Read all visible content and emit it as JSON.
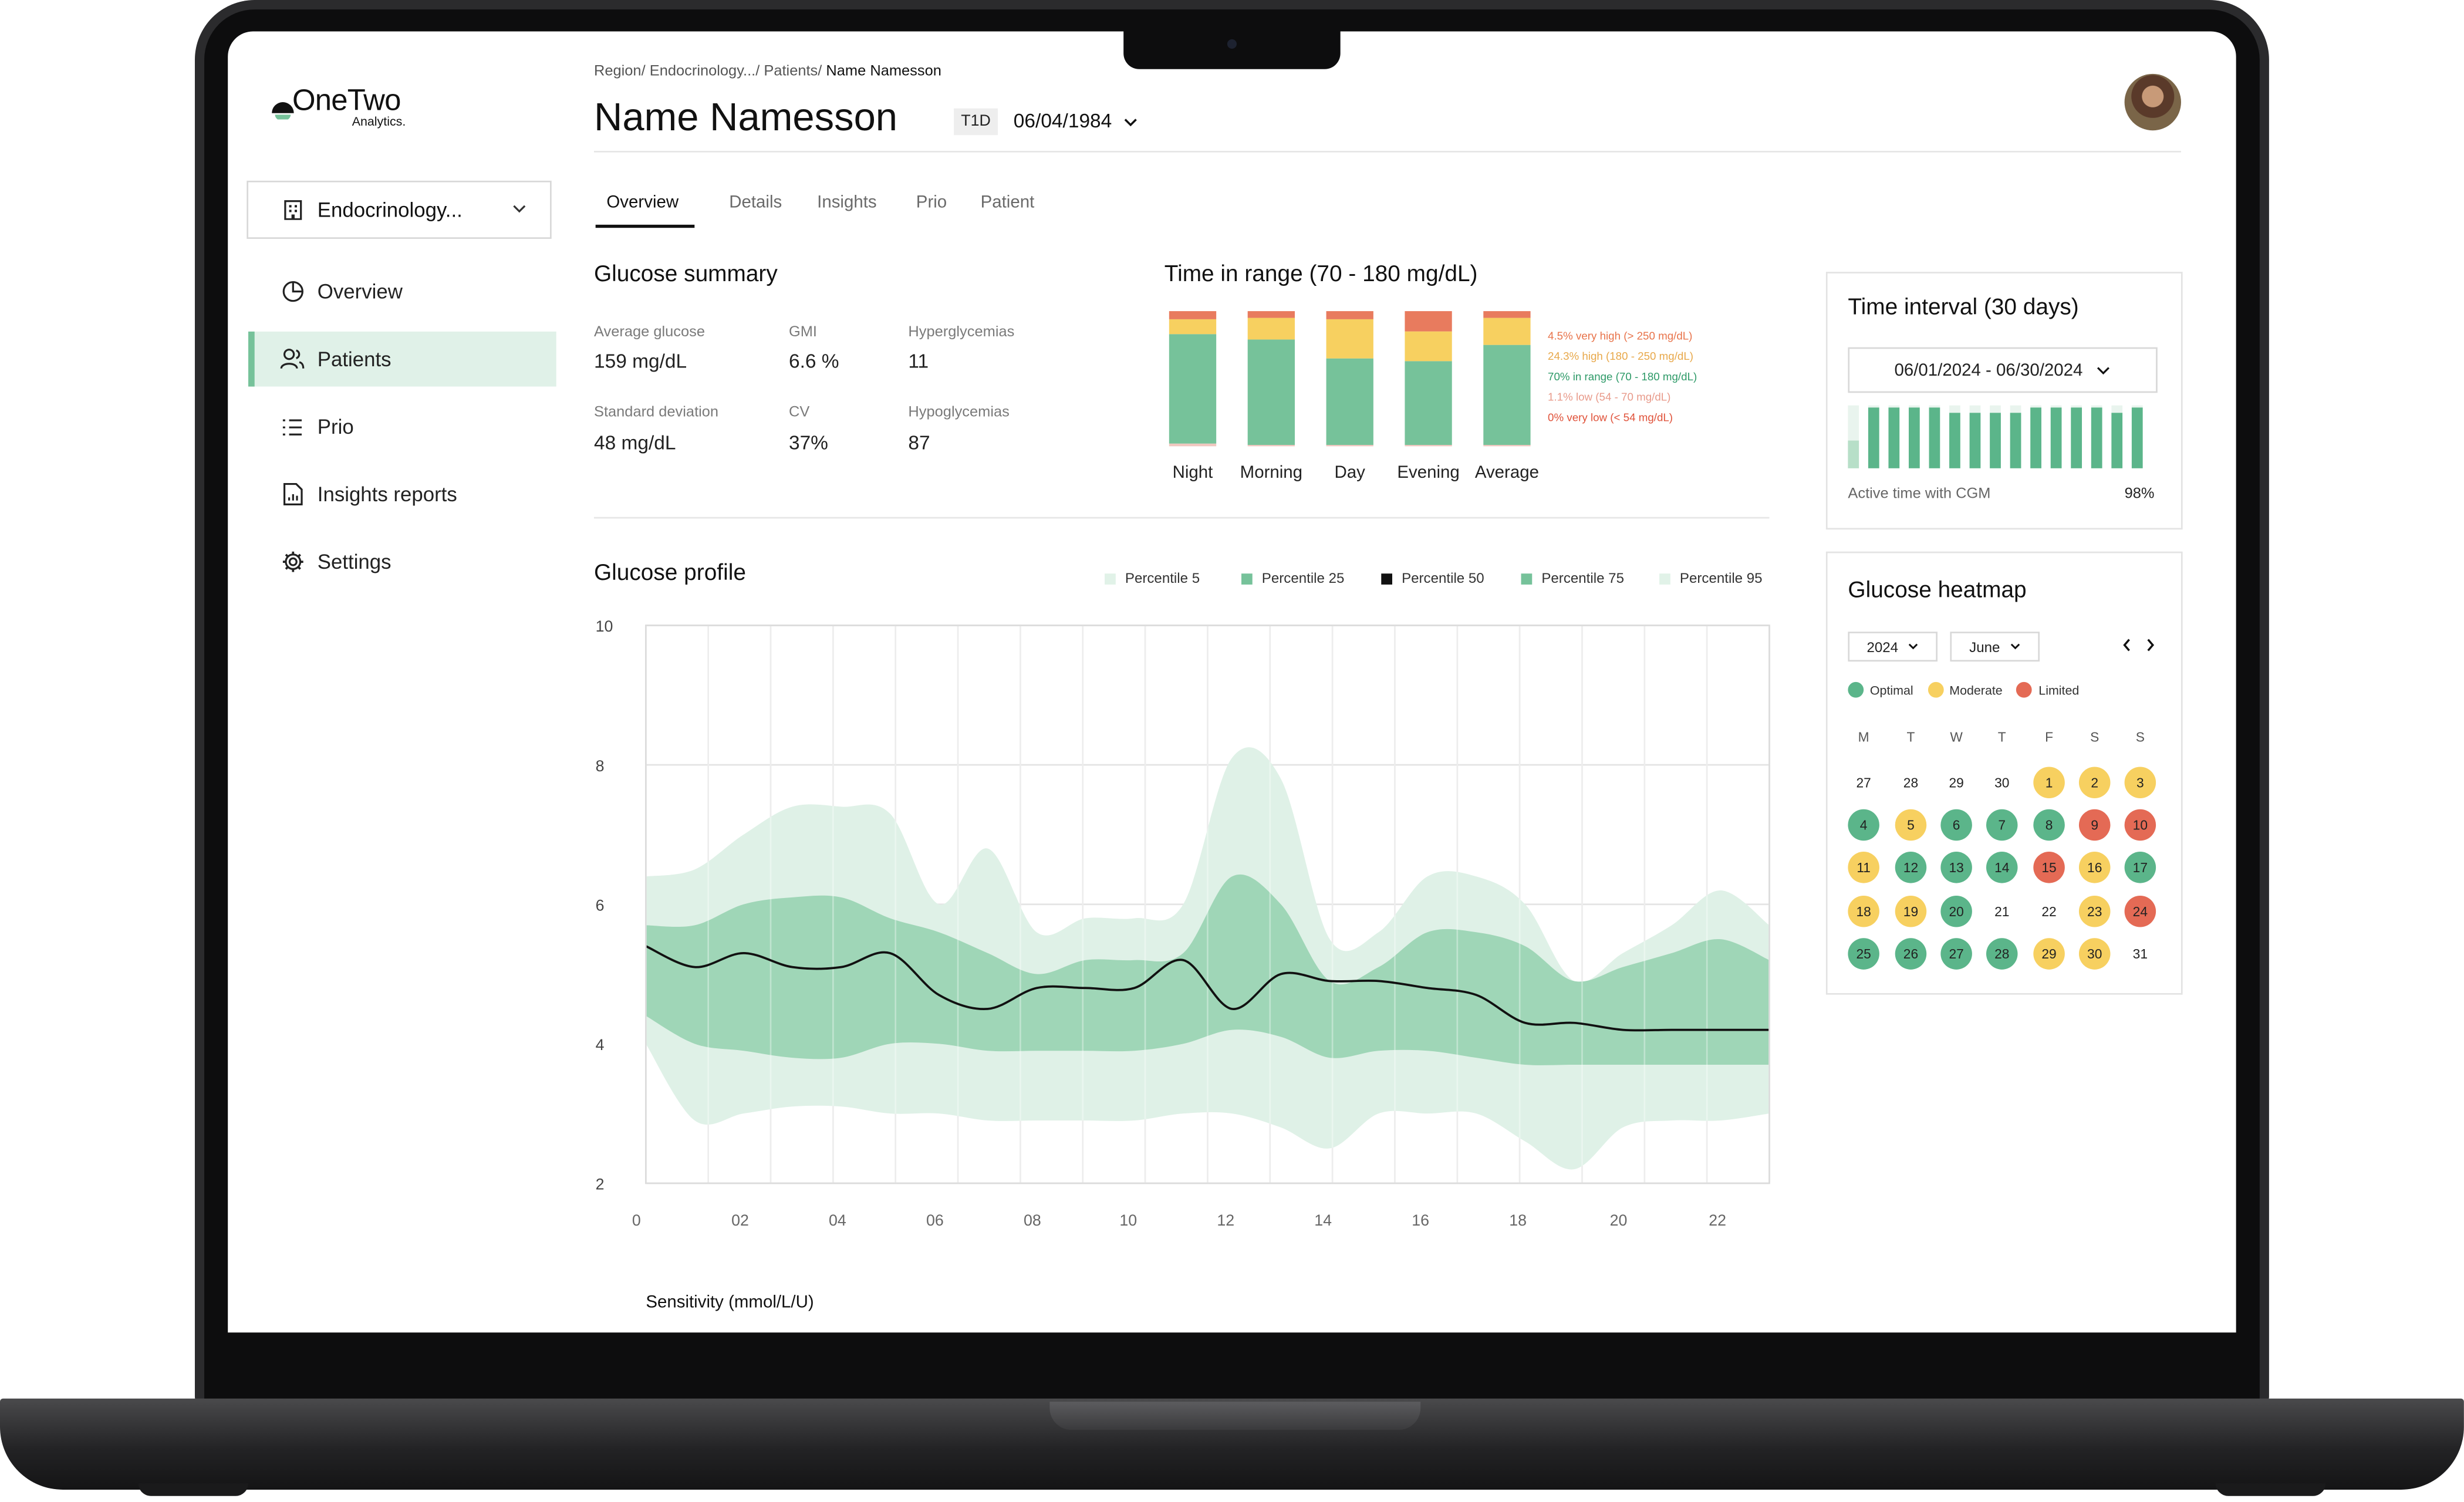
{
  "brand": {
    "name": "OneTwo",
    "sub": "Analytics."
  },
  "sidebar": {
    "department": "Endocrinology...",
    "items": [
      {
        "label": "Overview",
        "icon": "pie-chart-icon"
      },
      {
        "label": "Patients",
        "icon": "users-icon",
        "active": true
      },
      {
        "label": "Prio",
        "icon": "list-icon"
      },
      {
        "label": "Insights reports",
        "icon": "report-icon"
      },
      {
        "label": "Settings",
        "icon": "gear-icon"
      }
    ]
  },
  "header": {
    "breadcrumb": [
      "Region/",
      "Endocrinology.../",
      "Patients/"
    ],
    "breadcrumb_current": "Name Namesson",
    "patient_name": "Name Namesson",
    "badge": "T1D",
    "dob": "06/04/1984"
  },
  "tabs": [
    "Overview",
    "Details",
    "Insights",
    "Prio",
    "Patient"
  ],
  "glucose_summary": {
    "title": "Glucose summary",
    "metrics": [
      {
        "label": "Average glucose",
        "value": "159 mg/dL"
      },
      {
        "label": "GMI",
        "value": "6.6 %"
      },
      {
        "label": "Hyperglycemias",
        "value": "11"
      },
      {
        "label": "Standard deviation",
        "value": "48 mg/dL"
      },
      {
        "label": "CV",
        "value": "37%"
      },
      {
        "label": "Hypoglycemias",
        "value": "87"
      }
    ]
  },
  "time_in_range": {
    "title": "Time in range (70 - 180 mg/dL)",
    "legend": [
      {
        "label": "4.5% very high (> 250 mg/dL)",
        "color": "#e8734a"
      },
      {
        "label": "24.3% high (180 - 250 mg/dL)",
        "color": "#e8a84a"
      },
      {
        "label": "70% in range (70 - 180 mg/dL)",
        "color": "#2e9a68"
      },
      {
        "label": "1.1% low (54 - 70 mg/dL)",
        "color": "#e89a8a"
      },
      {
        "label": "0% very low (< 54 mg/dL)",
        "color": "#e0523a"
      }
    ]
  },
  "chart_data": [
    {
      "type": "bar",
      "stacked": true,
      "title": "Time in range (70 - 180 mg/dL)",
      "categories": [
        "Night",
        "Morning",
        "Day",
        "Evening",
        "Average"
      ],
      "series": [
        {
          "name": "very low",
          "color": "#f0c7bf",
          "values": [
            2,
            1,
            1,
            1,
            1
          ]
        },
        {
          "name": "in range",
          "color": "#76c29a",
          "values": [
            81,
            78,
            64,
            62,
            74
          ]
        },
        {
          "name": "high",
          "color": "#f7d060",
          "values": [
            11,
            16,
            29,
            22,
            20
          ]
        },
        {
          "name": "very high",
          "color": "#e87b5e",
          "values": [
            6,
            5,
            6,
            15,
            5
          ]
        }
      ],
      "ylim": [
        0,
        100
      ]
    },
    {
      "type": "area",
      "title": "Glucose profile",
      "x": [
        0,
        1,
        2,
        3,
        4,
        5,
        6,
        7,
        8,
        9,
        10,
        11,
        12,
        13,
        14,
        15,
        16,
        17,
        18,
        19,
        20,
        21,
        22,
        23
      ],
      "x_ticks": [
        "0",
        "02",
        "04",
        "06",
        "08",
        "10",
        "12",
        "14",
        "16",
        "18",
        "20",
        "22"
      ],
      "y_ticks": [
        "10",
        "8",
        "6",
        "4",
        "2"
      ],
      "ylim": [
        2,
        10
      ],
      "series": [
        {
          "name": "Percentile 95",
          "values": [
            6.4,
            6.5,
            7.0,
            7.4,
            7.4,
            7.3,
            6.0,
            6.8,
            5.6,
            5.8,
            5.8,
            6.0,
            8.1,
            7.8,
            5.5,
            5.6,
            6.4,
            6.4,
            6.0,
            4.9,
            5.3,
            5.7,
            6.2,
            5.7
          ]
        },
        {
          "name": "Percentile 75",
          "values": [
            5.7,
            5.7,
            6.0,
            6.1,
            6.1,
            5.8,
            5.6,
            5.3,
            5.0,
            5.2,
            5.2,
            5.3,
            6.4,
            6.0,
            4.9,
            5.1,
            5.6,
            5.6,
            5.4,
            4.9,
            5.1,
            5.3,
            5.5,
            5.2
          ]
        },
        {
          "name": "Percentile 50",
          "values": [
            5.4,
            5.1,
            5.3,
            5.1,
            5.1,
            5.3,
            4.7,
            4.5,
            4.8,
            4.8,
            4.8,
            5.2,
            4.5,
            5.0,
            4.9,
            4.9,
            4.8,
            4.7,
            4.3,
            4.3,
            4.2,
            4.2,
            4.2,
            4.2
          ]
        },
        {
          "name": "Percentile 25",
          "values": [
            4.4,
            4.0,
            3.9,
            3.8,
            3.8,
            4.0,
            4.0,
            3.9,
            3.9,
            3.9,
            3.9,
            4.0,
            4.2,
            4.1,
            3.8,
            3.9,
            3.9,
            3.8,
            3.7,
            3.7,
            3.7,
            3.7,
            3.7,
            3.7
          ]
        },
        {
          "name": "Percentile 5",
          "values": [
            4.0,
            2.9,
            3.0,
            3.1,
            3.1,
            3.0,
            3.0,
            2.9,
            2.9,
            2.9,
            2.9,
            3.0,
            3.0,
            2.8,
            2.5,
            3.0,
            3.0,
            3.0,
            2.6,
            2.2,
            2.8,
            2.9,
            2.9,
            3.0
          ]
        }
      ]
    },
    {
      "type": "bar",
      "title": "Time interval (30 days)",
      "values": [
        0.42,
        0.92,
        0.92,
        0.92,
        0.92,
        0.84,
        0.84,
        0.84,
        0.84,
        0.92,
        0.92,
        0.92,
        0.92,
        0.84,
        0.92
      ],
      "ylim": [
        0,
        1
      ]
    }
  ],
  "profile": {
    "title": "Glucose profile",
    "legend": [
      {
        "label": "Percentile 5",
        "color": "#e1f2e8"
      },
      {
        "label": "Percentile 25",
        "color": "#76c29a"
      },
      {
        "label": "Percentile 50",
        "color": "#111111"
      },
      {
        "label": "Percentile 75",
        "color": "#76c29a"
      },
      {
        "label": "Percentile 95",
        "color": "#e1f2e8"
      }
    ],
    "sensitivity_label": "Sensitivity (mmol/L/U)"
  },
  "interval": {
    "title": "Time interval (30 days)",
    "range": "06/01/2024 - 06/30/2024",
    "active_label": "Active time with CGM",
    "active_value": "98%"
  },
  "heatmap": {
    "title": "Glucose heatmap",
    "year": "2024",
    "month": "June",
    "legend": [
      {
        "label": "Optimal",
        "color": "#5bb58a"
      },
      {
        "label": "Moderate",
        "color": "#f7d060"
      },
      {
        "label": "Limited",
        "color": "#e46a55"
      }
    ],
    "weekdays": [
      "M",
      "T",
      "W",
      "T",
      "F",
      "S",
      "S"
    ],
    "days": [
      {
        "d": "27",
        "s": ""
      },
      {
        "d": "28",
        "s": ""
      },
      {
        "d": "29",
        "s": ""
      },
      {
        "d": "30",
        "s": ""
      },
      {
        "d": "1",
        "s": "m"
      },
      {
        "d": "2",
        "s": "m"
      },
      {
        "d": "3",
        "s": "m"
      },
      {
        "d": "4",
        "s": "o"
      },
      {
        "d": "5",
        "s": "m"
      },
      {
        "d": "6",
        "s": "o"
      },
      {
        "d": "7",
        "s": "o"
      },
      {
        "d": "8",
        "s": "o"
      },
      {
        "d": "9",
        "s": "l"
      },
      {
        "d": "10",
        "s": "l"
      },
      {
        "d": "11",
        "s": "m"
      },
      {
        "d": "12",
        "s": "o"
      },
      {
        "d": "13",
        "s": "o"
      },
      {
        "d": "14",
        "s": "o"
      },
      {
        "d": "15",
        "s": "l"
      },
      {
        "d": "16",
        "s": "m"
      },
      {
        "d": "17",
        "s": "o"
      },
      {
        "d": "18",
        "s": "m"
      },
      {
        "d": "19",
        "s": "m"
      },
      {
        "d": "20",
        "s": "o"
      },
      {
        "d": "21",
        "s": ""
      },
      {
        "d": "22",
        "s": ""
      },
      {
        "d": "23",
        "s": "m"
      },
      {
        "d": "24",
        "s": "l"
      },
      {
        "d": "25",
        "s": "o"
      },
      {
        "d": "26",
        "s": "o"
      },
      {
        "d": "27",
        "s": "o"
      },
      {
        "d": "28",
        "s": "o"
      },
      {
        "d": "29",
        "s": "m"
      },
      {
        "d": "30",
        "s": "m"
      },
      {
        "d": "31",
        "s": ""
      }
    ]
  }
}
